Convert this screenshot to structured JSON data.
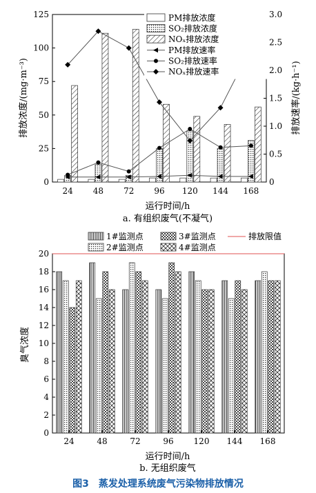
{
  "figure_caption": "图3　蒸发处理系统废气污染物排放情况",
  "chart_data": [
    {
      "type": "bar",
      "subtitle": "a. 有组织废气(不凝气)",
      "xlabel": "运行时间/h",
      "ylabel": "排放浓度/(mg·m⁻³)",
      "y2label": "排放速率/(kg·h⁻¹)",
      "categories": [
        "24",
        "48",
        "72",
        "96",
        "120",
        "144",
        "168"
      ],
      "ylim": [
        0,
        125
      ],
      "y2lim": [
        0,
        3.0
      ],
      "yticks": [
        "0",
        "25",
        "50",
        "75",
        "100",
        "125"
      ],
      "y2ticks": [
        "0",
        "0.5",
        "1.0",
        "1.5",
        "2.0",
        "2.5",
        "3.0"
      ],
      "legend_position": "top-right",
      "series": [
        {
          "name": "PM排放浓度",
          "kind": "bar",
          "pattern": "plain",
          "values": [
            2,
            2,
            2,
            3,
            3,
            3,
            3
          ]
        },
        {
          "name": "SO₂排放浓度",
          "kind": "bar",
          "pattern": "dots",
          "values": [
            5,
            13,
            5,
            25,
            38,
            25,
            31
          ]
        },
        {
          "name": "NOₓ排放浓度",
          "kind": "bar",
          "pattern": "diag",
          "values": [
            72,
            111,
            114,
            58,
            49,
            43,
            56
          ]
        },
        {
          "name": "PM排放速率",
          "kind": "line",
          "axis": "right",
          "marker": "triangle",
          "values": [
            0.09,
            0.09,
            0.09,
            0.1,
            0.12,
            0.1,
            0.1
          ]
        },
        {
          "name": "SO₂排放速率",
          "kind": "line",
          "axis": "right",
          "marker": "circle",
          "values": [
            0.13,
            0.35,
            0.19,
            0.61,
            0.95,
            0.62,
            0.65
          ]
        },
        {
          "name": "NOₓ排放速率",
          "kind": "line",
          "axis": "right",
          "marker": "diamond",
          "values": [
            2.1,
            2.7,
            2.4,
            1.43,
            0.74,
            1.33,
            2.4
          ]
        }
      ]
    },
    {
      "type": "bar",
      "subtitle": "b. 无组织废气",
      "xlabel": "运行时间/h",
      "ylabel": "臭气浓度",
      "categories": [
        "24",
        "48",
        "72",
        "96",
        "120",
        "144",
        "168"
      ],
      "ylim": [
        0,
        20
      ],
      "yticks": [
        "0",
        "2",
        "4",
        "6",
        "8",
        "10",
        "12",
        "14",
        "16",
        "18",
        "20"
      ],
      "legend_position": "top",
      "limit_line": {
        "name": "排放限值",
        "value": 20,
        "color": "#e05050"
      },
      "series": [
        {
          "name": "1#监测点",
          "pattern": "vlines",
          "values": [
            18,
            19,
            16,
            16,
            18,
            17,
            17
          ]
        },
        {
          "name": "2#监测点",
          "pattern": "dots",
          "values": [
            17,
            15,
            19,
            15,
            17,
            15,
            18
          ]
        },
        {
          "name": "3#监测点",
          "pattern": "checker",
          "values": [
            14,
            18,
            18,
            19,
            16,
            17,
            17
          ]
        },
        {
          "name": "4#监测点",
          "pattern": "cross",
          "values": [
            17,
            16,
            17,
            18,
            16,
            16,
            17
          ]
        }
      ]
    }
  ]
}
